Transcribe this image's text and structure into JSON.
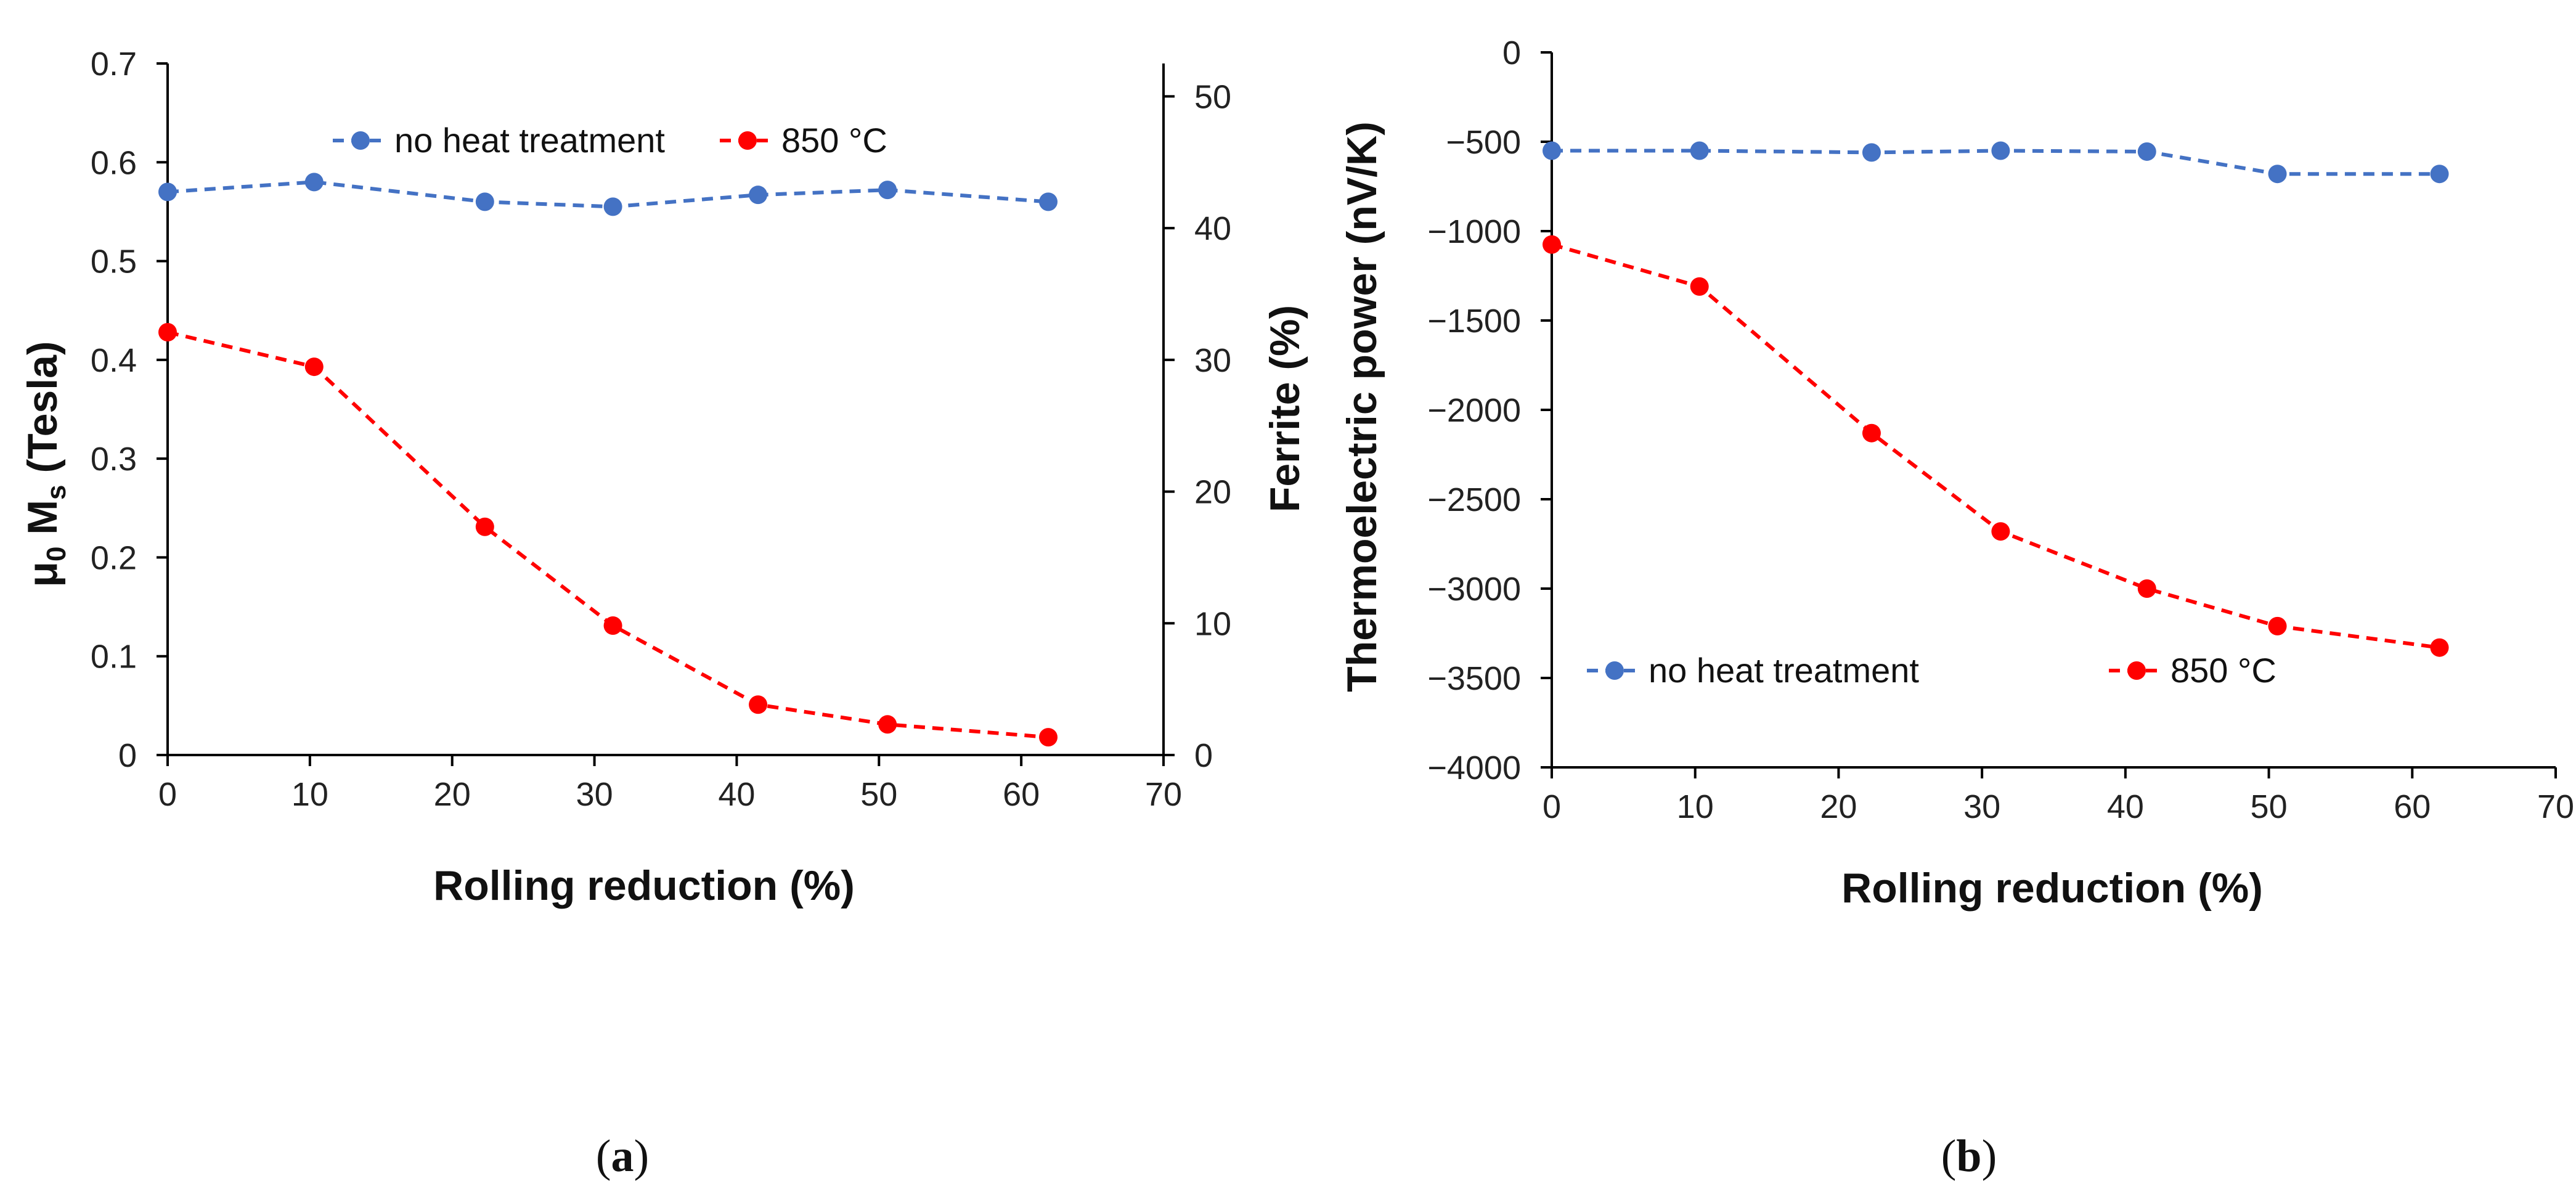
{
  "figure": {
    "panel_labels": {
      "a": {
        "open": "(",
        "letter": "a",
        "close": ")"
      },
      "b": {
        "open": "(",
        "letter": "b",
        "close": ")"
      }
    }
  },
  "chart_data": [
    {
      "id": "a",
      "type": "line",
      "xlabel": "Rolling reduction (%)",
      "ylabel": "μ0 Ms (Tesla)",
      "ylabel_parts": {
        "mu": "μ",
        "sub0": "0",
        "m": " M",
        "subs": "s",
        "unit": " (Tesla)"
      },
      "y2label": "Ferrite (%)",
      "xlim": [
        0,
        70
      ],
      "ylim": [
        0,
        0.7
      ],
      "y2lim": [
        0,
        52.5
      ],
      "xticks": [
        "0",
        "10",
        "20",
        "30",
        "40",
        "50",
        "60",
        "70"
      ],
      "yticks": [
        "0",
        "0.1",
        "0.2",
        "0.3",
        "0.4",
        "0.5",
        "0.6",
        "0.7"
      ],
      "y2ticks": [
        "0",
        "10",
        "20",
        "30",
        "40",
        "50"
      ],
      "grid": false,
      "legend_position": "top",
      "series": [
        {
          "name": "no heat treatment",
          "color": "#4472C4",
          "x": [
            0,
            10.3,
            22.3,
            31.3,
            41.5,
            50.6,
            61.9
          ],
          "values": [
            0.57,
            0.58,
            0.56,
            0.555,
            0.567,
            0.572,
            0.56
          ]
        },
        {
          "name": "850 °C",
          "color": "#FF0000",
          "x": [
            0,
            10.3,
            22.3,
            31.3,
            41.5,
            50.6,
            61.9
          ],
          "values": [
            0.428,
            0.393,
            0.231,
            0.131,
            0.051,
            0.031,
            0.018
          ]
        }
      ]
    },
    {
      "id": "b",
      "type": "line",
      "xlabel": "Rolling reduction (%)",
      "ylabel": "Thermoelectric power (nV/K)",
      "xlim": [
        0,
        70
      ],
      "ylim": [
        -4000,
        0
      ],
      "xticks": [
        "0",
        "10",
        "20",
        "30",
        "40",
        "50",
        "60",
        "70"
      ],
      "yticks": [
        "0",
        "-500",
        "-1000",
        "-1500",
        "-2000",
        "-2500",
        "-3000",
        "-3500",
        "-4000"
      ],
      "grid": false,
      "legend_position": "bottom",
      "series": [
        {
          "name": "no heat treatment",
          "color": "#4472C4",
          "x": [
            0,
            10.3,
            22.3,
            31.3,
            41.5,
            50.6,
            61.9
          ],
          "values": [
            -550,
            -550,
            -560,
            -550,
            -555,
            -680,
            -680
          ]
        },
        {
          "name": "850 °C",
          "color": "#FF0000",
          "x": [
            0,
            10.3,
            22.3,
            31.3,
            41.5,
            50.6,
            61.9
          ],
          "values": [
            -1075,
            -1310,
            -2130,
            -2680,
            -3000,
            -3210,
            -3330
          ]
        }
      ]
    }
  ]
}
